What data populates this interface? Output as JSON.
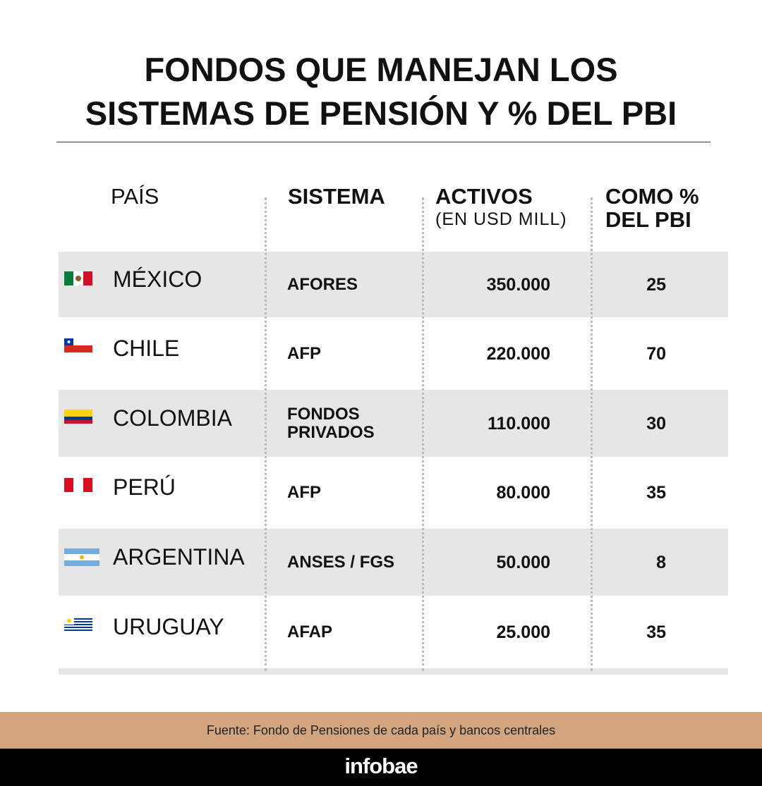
{
  "header": {
    "title": [
      "FONDOS QUE MANEJAN LOS",
      "SISTEMAS DE PENSIÓN Y % DEL PBI"
    ]
  },
  "table": {
    "columns": [
      [
        "PAÍS"
      ],
      [
        "SISTEMA"
      ],
      [
        "ACTIVOS",
        "(EN USD MILL)"
      ],
      [
        "COMO %",
        "DEL PBI"
      ]
    ],
    "rows": [
      [
        "MÉXICO",
        [
          "AFORES"
        ],
        "350.000",
        "25"
      ],
      [
        "CHILE",
        [
          "AFP"
        ],
        "220.000",
        "70"
      ],
      [
        "COLOMBIA",
        [
          "FONDOS",
          "PRIVADOS"
        ],
        "110.000",
        "30"
      ],
      [
        "PERÚ",
        [
          "AFP"
        ],
        "80.000",
        "35"
      ],
      [
        "ARGENTINA",
        [
          "ANSES / FGS"
        ],
        "50.000",
        "8"
      ],
      [
        "URUGUAY",
        [
          "AFAP"
        ],
        "25.000",
        "35"
      ]
    ]
  },
  "footer": {
    "source": "Fuente: Fondo de Pensiones de cada país y bancos centrales",
    "brand": "infobae"
  }
}
